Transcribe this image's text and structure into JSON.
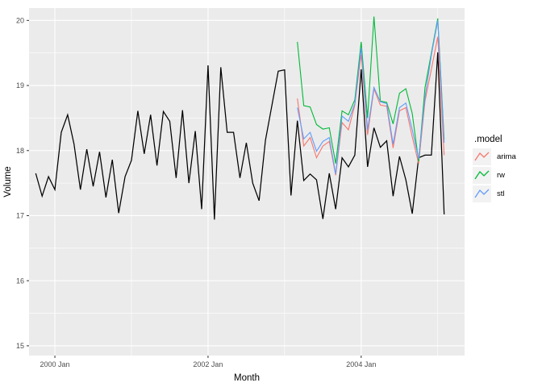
{
  "chart_data": {
    "type": "line",
    "title": "",
    "xlabel": "Month",
    "ylabel": "Volume",
    "x_unit": "months_since_2000_Jan",
    "x_range": [
      -4.05,
      64.2
    ],
    "y_range": [
      14.85,
      20.19
    ],
    "x_ticks": [
      {
        "m": 0,
        "label": "2000 Jan"
      },
      {
        "m": 24,
        "label": "2002 Jan"
      },
      {
        "m": 48,
        "label": "2004 Jan"
      }
    ],
    "x_minor": [
      12,
      36,
      60
    ],
    "y_ticks": [
      {
        "v": 15,
        "label": "15"
      },
      {
        "v": 16,
        "label": "16"
      },
      {
        "v": 17,
        "label": "17"
      },
      {
        "v": 18,
        "label": "18"
      },
      {
        "v": 19,
        "label": "19"
      },
      {
        "v": 20,
        "label": "20"
      }
    ],
    "y_minor": [
      15.5,
      16.5,
      17.5,
      18.5,
      19.5
    ],
    "grid": true,
    "panel_bg": "#EBEBEB",
    "grid_color": "#FFFFFF",
    "tick_color": "#333333",
    "tick_label_color": "#4D4D4D",
    "axis_title_color": "#000000",
    "legend": {
      "title": ".model",
      "position": "right",
      "key_bg": "#F2F2F2",
      "entries": [
        {
          "label": "arima",
          "color": "#F8766D"
        },
        {
          "label": "rw",
          "color": "#00BA38"
        },
        {
          "label": "stl",
          "color": "#619CFF"
        }
      ]
    },
    "series": [
      {
        "name": "actual",
        "color": "#000000",
        "width": 1.25,
        "start_month": -3,
        "start_label": "1999 Oct",
        "values": [
          17.65,
          17.3,
          17.6,
          17.4,
          18.28,
          18.55,
          18.1,
          17.4,
          18.02,
          17.45,
          17.98,
          17.28,
          17.86,
          17.04,
          17.6,
          17.85,
          18.61,
          17.95,
          18.55,
          17.77,
          18.6,
          18.45,
          17.58,
          18.62,
          17.5,
          18.3,
          17.1,
          19.31,
          16.94,
          19.28,
          18.28,
          18.28,
          17.58,
          18.12,
          17.5,
          17.23,
          18.16,
          18.69,
          19.22,
          19.24,
          17.31,
          18.46,
          17.54,
          17.64,
          17.55,
          16.95,
          17.65,
          17.1,
          17.89,
          17.75,
          17.93,
          19.25,
          17.75,
          18.35,
          18.05,
          18.15,
          17.3,
          17.91,
          17.55,
          17.03,
          17.89,
          17.93,
          17.93,
          19.51,
          17.02
        ]
      },
      {
        "name": "arima",
        "color": "#F8766D",
        "width": 1.1,
        "start_month": 38,
        "start_label": "2003 Mar",
        "values": [
          18.8,
          18.07,
          18.2,
          17.89,
          18.07,
          18.14,
          17.62,
          18.43,
          18.32,
          18.7,
          19.48,
          18.24,
          18.95,
          18.7,
          18.68,
          18.04,
          18.61,
          18.66,
          18.21,
          17.8,
          18.76,
          19.25,
          19.75,
          17.93
        ]
      },
      {
        "name": "rw",
        "color": "#00BA38",
        "width": 1.1,
        "start_month": 38,
        "start_label": "2003 Mar",
        "values": [
          19.67,
          18.69,
          18.67,
          18.4,
          18.33,
          18.35,
          17.8,
          18.61,
          18.55,
          18.78,
          19.67,
          18.5,
          20.06,
          18.76,
          18.74,
          18.41,
          18.88,
          18.95,
          18.57,
          17.83,
          18.97,
          19.5,
          20.03,
          18.17
        ]
      },
      {
        "name": "stl",
        "color": "#619CFF",
        "width": 1.1,
        "start_month": 38,
        "start_label": "2003 Mar",
        "values": [
          18.66,
          18.18,
          18.28,
          17.99,
          18.14,
          18.2,
          17.64,
          18.53,
          18.45,
          18.72,
          19.58,
          18.32,
          18.97,
          18.75,
          18.72,
          18.1,
          18.66,
          18.73,
          18.32,
          17.87,
          18.82,
          19.47,
          20.0,
          18.12
        ]
      }
    ]
  }
}
